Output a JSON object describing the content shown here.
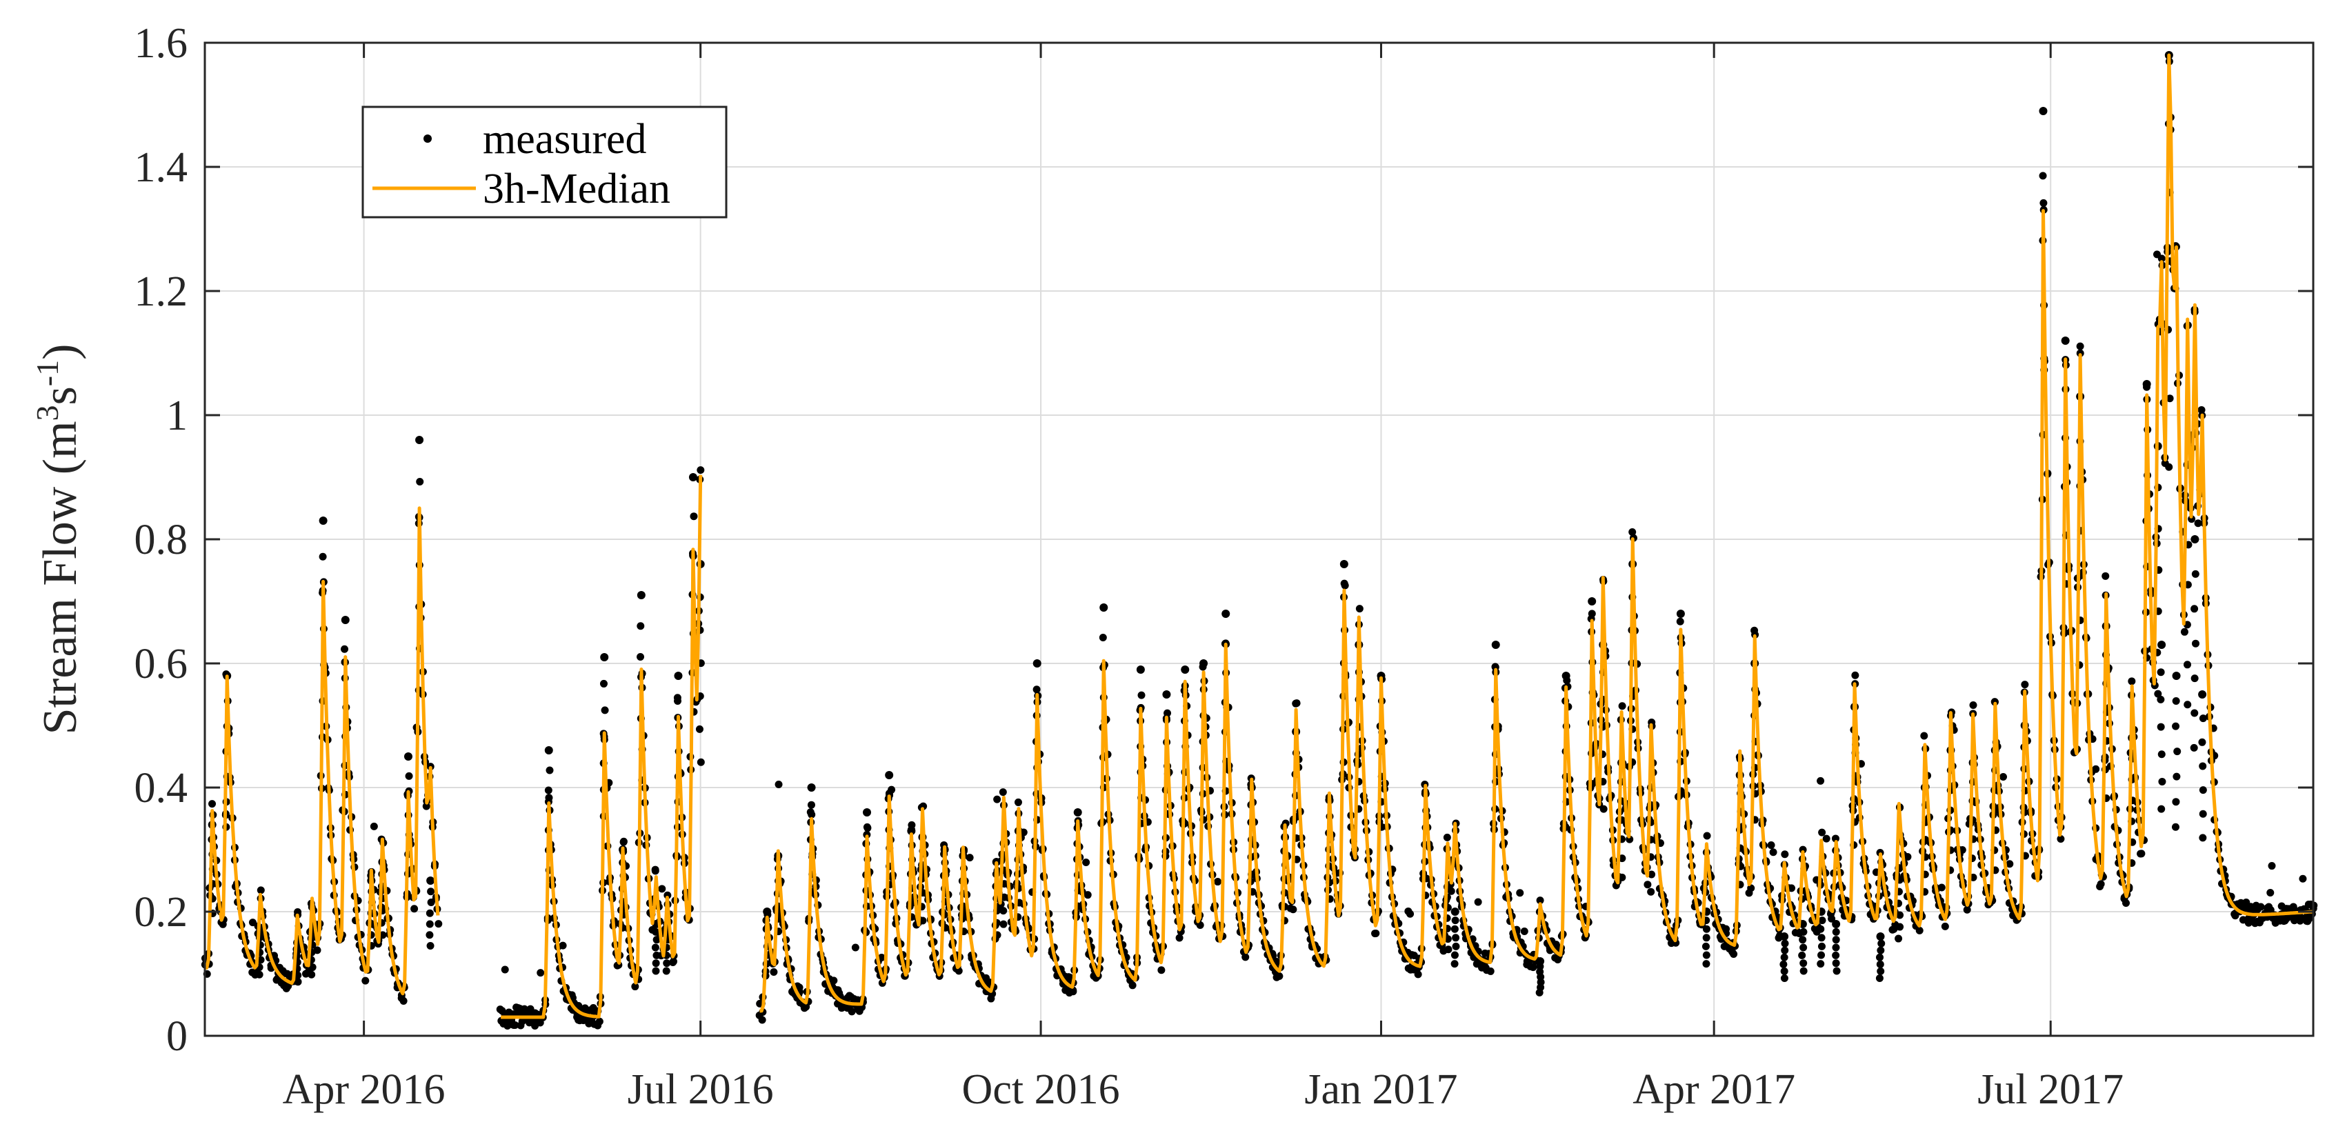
{
  "chart_data": {
    "type": "scatter",
    "title": "",
    "xlabel": "",
    "ylabel": "Stream Flow (m",
    "ylabel_sup1": "3",
    "ylabel_mid": "s",
    "ylabel_sup2": "-1",
    "ylabel_end": ")",
    "xlim": [
      0,
      570
    ],
    "ylim": [
      0,
      1.6
    ],
    "grid": true,
    "x_unit": "days since 2016-02-18",
    "x_ticks": [
      {
        "label": "Apr 2016",
        "value": 43
      },
      {
        "label": "Jul 2016",
        "value": 134
      },
      {
        "label": "Oct 2016",
        "value": 226
      },
      {
        "label": "Jan 2017",
        "value": 318
      },
      {
        "label": "Apr 2017",
        "value": 408
      },
      {
        "label": "Jul 2017",
        "value": 499
      }
    ],
    "y_ticks": [
      {
        "label": "0",
        "value": 0
      },
      {
        "label": "0.2",
        "value": 0.2
      },
      {
        "label": "0.4",
        "value": 0.4
      },
      {
        "label": "0.6",
        "value": 0.6
      },
      {
        "label": "0.8",
        "value": 0.8
      },
      {
        "label": "1",
        "value": 1.0
      },
      {
        "label": "1.2",
        "value": 1.2
      },
      {
        "label": "1.4",
        "value": 1.4
      },
      {
        "label": "1.6",
        "value": 1.6
      }
    ],
    "legend": {
      "position": "top-left",
      "entries": [
        {
          "label": "measured",
          "marker": "dot",
          "color": "#000000"
        },
        {
          "label": "3h-Median",
          "marker": "line",
          "color": "#FFA500"
        }
      ]
    },
    "segments": [
      {
        "start": 0,
        "end": 63,
        "baseflow_start": 0.11,
        "baseflow_end": 0.035,
        "events": [
          [
            2,
            0.34
          ],
          [
            6,
            0.58
          ],
          [
            15,
            0.17
          ],
          [
            25,
            0.15
          ],
          [
            29,
            0.17
          ],
          [
            32,
            0.83
          ],
          [
            38,
            0.67
          ],
          [
            45,
            0.25
          ],
          [
            48,
            0.28
          ],
          [
            55,
            0.45
          ],
          [
            58,
            0.96
          ],
          [
            61,
            0.25
          ]
        ]
      },
      {
        "start": 80,
        "end": 134,
        "baseflow_start": 0.03,
        "baseflow_end": 0.03,
        "events": [
          [
            93,
            0.46
          ],
          [
            108,
            0.61
          ],
          [
            113,
            0.3
          ],
          [
            118,
            0.71
          ],
          [
            122,
            0.18
          ],
          [
            125,
            0.18
          ],
          [
            128,
            0.58
          ],
          [
            132,
            0.9
          ],
          [
            134,
            0.76
          ]
        ]
      },
      {
        "start": 150,
        "end": 570,
        "baseflow_start": 0.04,
        "baseflow_end": 0.2,
        "events": [
          [
            152,
            0.2
          ],
          [
            155,
            0.29
          ],
          [
            164,
            0.4
          ],
          [
            179,
            0.36
          ],
          [
            185,
            0.42
          ],
          [
            191,
            0.33
          ],
          [
            194,
            0.32
          ],
          [
            200,
            0.3
          ],
          [
            205,
            0.29
          ],
          [
            214,
            0.28
          ],
          [
            216,
            0.31
          ],
          [
            220,
            0.33
          ],
          [
            225,
            0.6
          ],
          [
            236,
            0.36
          ],
          [
            243,
            0.69
          ],
          [
            253,
            0.59
          ],
          [
            260,
            0.55
          ],
          [
            265,
            0.59
          ],
          [
            270,
            0.6
          ],
          [
            276,
            0.68
          ],
          [
            283,
            0.4
          ],
          [
            292,
            0.32
          ],
          [
            295,
            0.49
          ],
          [
            304,
            0.38
          ],
          [
            308,
            0.76
          ],
          [
            312,
            0.63
          ],
          [
            318,
            0.58
          ],
          [
            330,
            0.39
          ],
          [
            336,
            0.24
          ],
          [
            338,
            0.2
          ],
          [
            349,
            0.63
          ],
          [
            361,
            0.12
          ],
          [
            368,
            0.58
          ],
          [
            375,
            0.7
          ],
          [
            378,
            0.63
          ],
          [
            383,
            0.44
          ],
          [
            386,
            0.76
          ],
          [
            391,
            0.4
          ],
          [
            399,
            0.68
          ],
          [
            406,
            0.2
          ],
          [
            415,
            0.42
          ],
          [
            419,
            0.6
          ],
          [
            427,
            0.16
          ],
          [
            432,
            0.18
          ],
          [
            437,
            0.2
          ],
          [
            441,
            0.18
          ],
          [
            446,
            0.53
          ],
          [
            453,
            0.16
          ],
          [
            458,
            0.27
          ],
          [
            465,
            0.4
          ],
          [
            472,
            0.46
          ],
          [
            478,
            0.44
          ],
          [
            484,
            0.46
          ],
          [
            492,
            0.5
          ],
          [
            497,
            1.49
          ],
          [
            503,
            1.12
          ],
          [
            507,
            1.03
          ],
          [
            514,
            0.66
          ],
          [
            521,
            0.48
          ],
          [
            525,
            1.05
          ],
          [
            528,
            0.95
          ],
          [
            529,
            0.63
          ],
          [
            531,
            1.58
          ],
          [
            533,
            0.58
          ],
          [
            536,
            0.92
          ],
          [
            538,
            0.8
          ],
          [
            540,
            0.55
          ]
        ]
      }
    ]
  }
}
